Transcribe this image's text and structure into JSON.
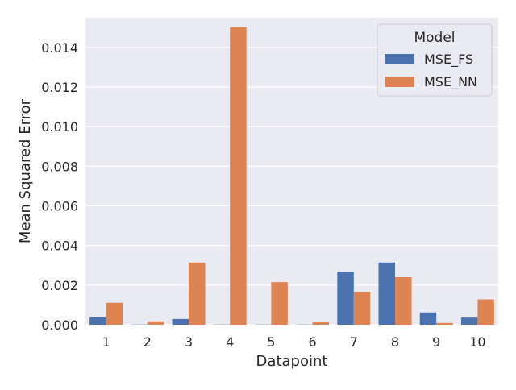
{
  "chart_data": {
    "type": "bar",
    "title": "",
    "xlabel": "Datapoint",
    "ylabel": "Mean Squared Error",
    "categories": [
      "1",
      "2",
      "3",
      "4",
      "5",
      "6",
      "7",
      "8",
      "9",
      "10"
    ],
    "series": [
      {
        "name": "MSE_FS",
        "color": "#4c72b0",
        "values": [
          0.00037,
          1e-05,
          0.00029,
          1e-05,
          1e-05,
          1e-05,
          0.00268,
          0.00314,
          0.00062,
          0.00036
        ]
      },
      {
        "name": "MSE_NN",
        "color": "#dd8452",
        "values": [
          0.00111,
          0.00017,
          0.00314,
          0.01503,
          0.00215,
          0.00012,
          0.00165,
          0.0024,
          9e-05,
          0.00128
        ]
      }
    ],
    "ylim": [
      0,
      0.0155
    ],
    "yticks": [
      "0.000",
      "0.002",
      "0.004",
      "0.006",
      "0.008",
      "0.010",
      "0.012",
      "0.014"
    ],
    "grid": true,
    "background": "#eaeaf2",
    "legend": {
      "title": "Model",
      "position": "upper right"
    }
  }
}
